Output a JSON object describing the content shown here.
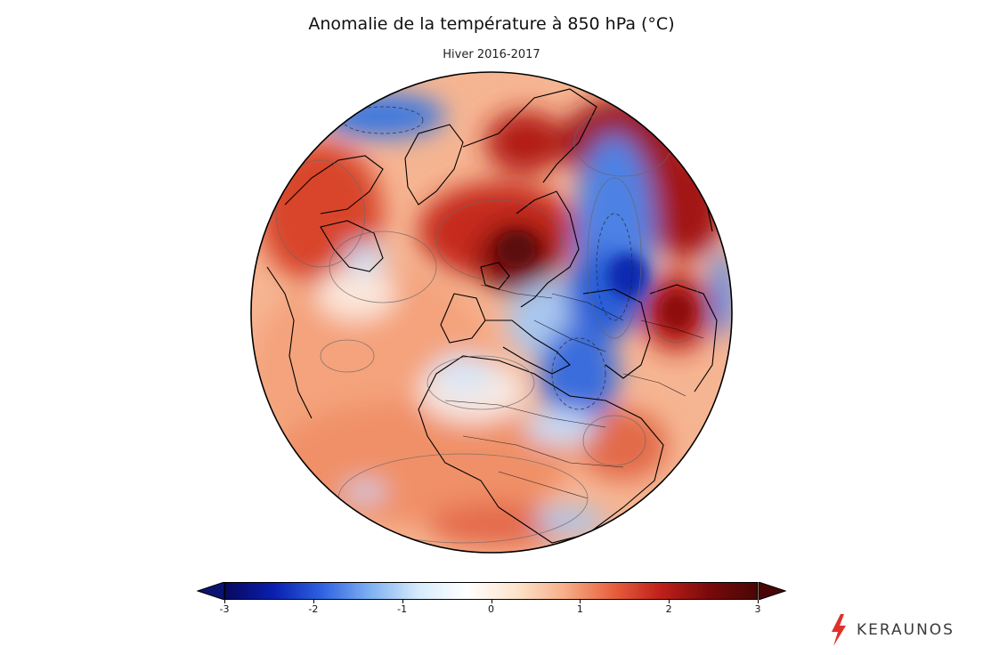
{
  "figure": {
    "title": "Anomalie de la température à 850 hPa (°C)",
    "subtitle": "Hiver 2016-2017"
  },
  "colorbar": {
    "min": -3,
    "max": 3,
    "ticks": [
      "-3",
      "-2",
      "-1",
      "0",
      "1",
      "2",
      "3"
    ],
    "extend": "both",
    "colors": [
      "#08085e",
      "#0a1fb0",
      "#2f62e0",
      "#7fb0f2",
      "#d6ebfb",
      "#ffffff",
      "#fde4cd",
      "#f7b08a",
      "#e8623f",
      "#c0201a",
      "#7a0a0a",
      "#4a0606"
    ]
  },
  "brand": {
    "name": "KERAUNOS",
    "accent": "#e0302a",
    "icon": "lightning-bolt-icon"
  },
  "map": {
    "projection": "orthographic",
    "region": "Europe / North Atlantic / Arctic"
  }
}
